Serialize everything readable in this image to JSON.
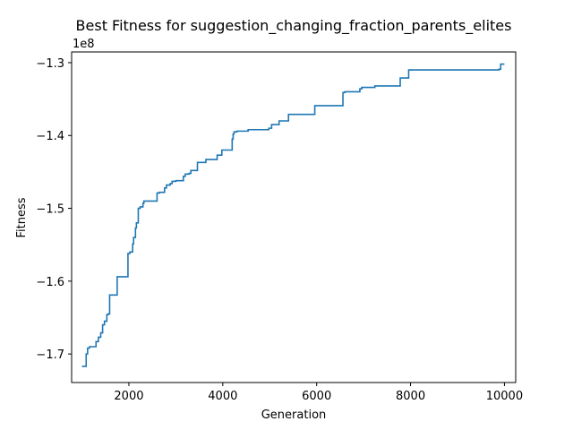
{
  "chart_data": {
    "type": "line",
    "title": "Best Fitness for suggestion_changing_fraction_parents_elites",
    "xlabel": "Generation",
    "ylabel": "Fitness",
    "y_offset_label": "1e8",
    "xlim": [
      780,
      10240
    ],
    "ylim": [
      -1.7392,
      -1.2853
    ],
    "x_ticks": [
      2000,
      4000,
      6000,
      8000,
      10000
    ],
    "x_tick_labels": [
      "2000",
      "4000",
      "6000",
      "8000",
      "10000"
    ],
    "y_ticks": [
      -1.7,
      -1.6,
      -1.5,
      -1.4,
      -1.3
    ],
    "y_tick_labels": [
      "−1.7",
      "−1.6",
      "−1.5",
      "−1.4",
      "−1.3"
    ],
    "grid": false,
    "line_color": "#1f77b4",
    "series": [
      {
        "step": true,
        "x": [
          1000,
          1060,
          1090,
          1120,
          1160,
          1280,
          1300,
          1350,
          1400,
          1440,
          1480,
          1530,
          1560,
          1590,
          1750,
          1980,
          2020,
          2080,
          2100,
          2140,
          2160,
          2200,
          2240,
          2300,
          2320,
          2360,
          2400,
          2600,
          2650,
          2760,
          2800,
          2880,
          2920,
          3000,
          3160,
          3200,
          3280,
          3320,
          3460,
          3520,
          3640,
          3880,
          3980,
          4200,
          4220,
          4240,
          4300,
          4480,
          4540,
          4600,
          4980,
          5040,
          5200,
          5300,
          5400,
          5900,
          5960,
          6560,
          6600,
          6920,
          6960,
          7200,
          7240,
          7740,
          7780,
          7940,
          7960,
          9400,
          9480,
          9880,
          9920,
          10000
        ],
        "values": [
          -1.717,
          -1.717,
          -1.7,
          -1.692,
          -1.69,
          -1.69,
          -1.683,
          -1.677,
          -1.671,
          -1.66,
          -1.655,
          -1.646,
          -1.645,
          -1.619,
          -1.594,
          -1.562,
          -1.56,
          -1.549,
          -1.54,
          -1.527,
          -1.52,
          -1.5,
          -1.498,
          -1.493,
          -1.49,
          -1.49,
          -1.49,
          -1.479,
          -1.478,
          -1.472,
          -1.468,
          -1.466,
          -1.463,
          -1.462,
          -1.456,
          -1.453,
          -1.452,
          -1.448,
          -1.437,
          -1.437,
          -1.433,
          -1.427,
          -1.42,
          -1.405,
          -1.398,
          -1.395,
          -1.394,
          -1.394,
          -1.392,
          -1.392,
          -1.39,
          -1.385,
          -1.38,
          -1.38,
          -1.371,
          -1.371,
          -1.359,
          -1.341,
          -1.34,
          -1.336,
          -1.334,
          -1.334,
          -1.332,
          -1.332,
          -1.321,
          -1.321,
          -1.31,
          -1.31,
          -1.31,
          -1.309,
          -1.302,
          -1.302
        ]
      }
    ]
  }
}
